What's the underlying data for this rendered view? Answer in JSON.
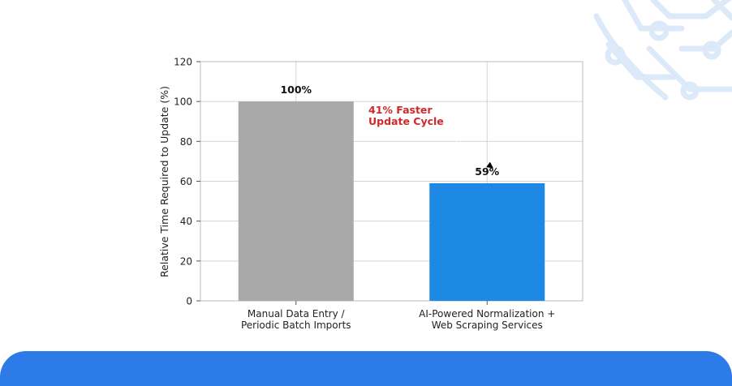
{
  "colors": {
    "band": "#2d7be8",
    "decoration": "#dbe9f8",
    "grid": "#d4d4d4",
    "axis": "#bdbdbd",
    "annotation": "#d0292b"
  },
  "decoration": {
    "icon": "circuit-pattern-icon"
  },
  "chart_data": {
    "type": "bar",
    "categories": [
      [
        "Manual Data Entry /",
        "Periodic Batch Imports"
      ],
      [
        "AI-Powered Normalization +",
        "Web Scraping Services"
      ]
    ],
    "values": [
      100,
      59
    ],
    "bar_colors": [
      "#a8a8a8",
      "#1e88e5"
    ],
    "data_labels": [
      "100%",
      "59%"
    ],
    "title": "",
    "xlabel": "",
    "ylabel": "Relative Time Required to Update (%)",
    "ylim": [
      0,
      120
    ],
    "yticks": [
      0,
      20,
      40,
      60,
      80,
      100,
      120
    ],
    "grid": true,
    "legend": "none",
    "annotation": {
      "lines": [
        "41% Faster",
        "Update Cycle"
      ],
      "color": "#d0292b"
    }
  }
}
